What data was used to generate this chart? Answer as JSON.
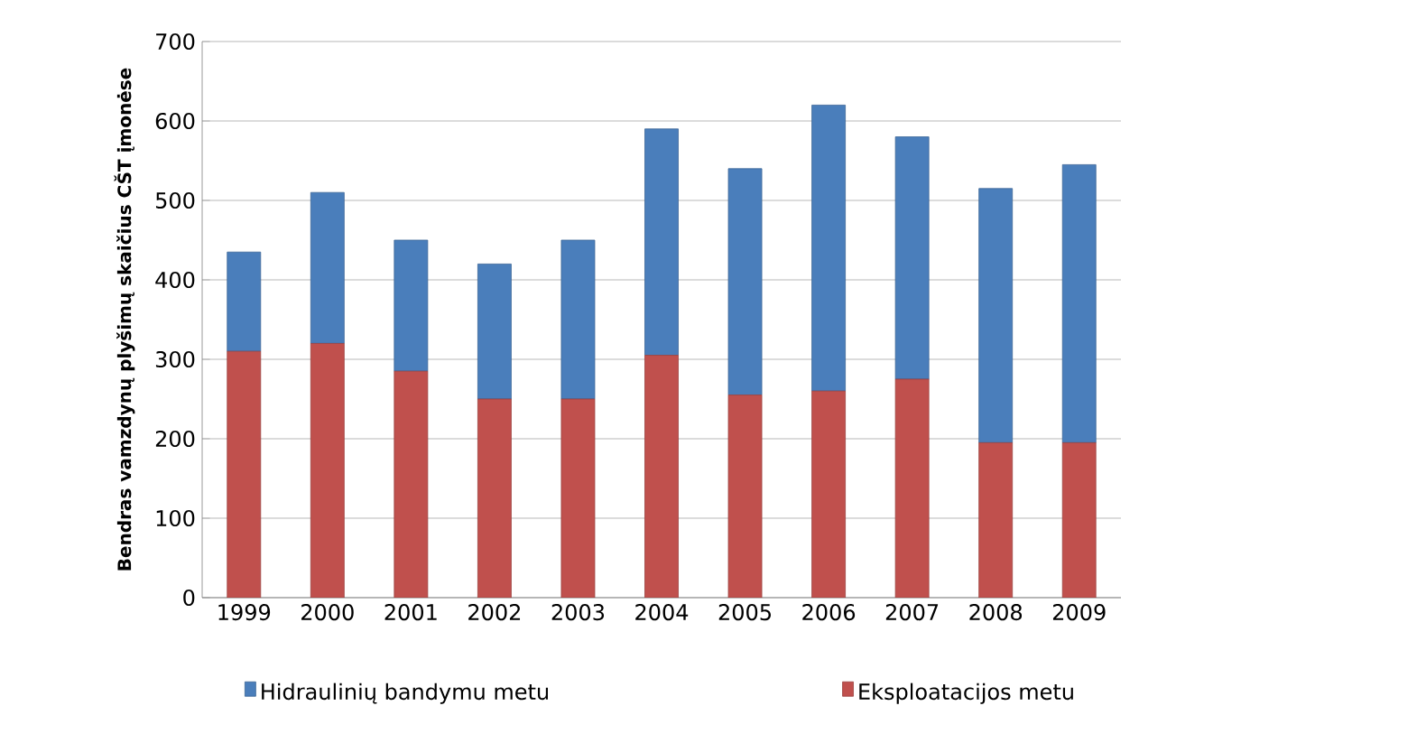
{
  "chart_data": {
    "type": "bar",
    "stacked": true,
    "ylabel": "Bendras vamzdynų plyšimų skaičius  CŠT įmonėse",
    "categories": [
      "1999",
      "2000",
      "2001",
      "2002",
      "2003",
      "2004",
      "2005",
      "2006",
      "2007",
      "2008",
      "2009"
    ],
    "series": [
      {
        "name": "Eksploatacijos metu",
        "color": "#c0504d",
        "values": [
          310,
          320,
          285,
          250,
          250,
          305,
          255,
          260,
          275,
          195,
          195
        ]
      },
      {
        "name": "Hidraulinių bandymu metu",
        "color": "#4a7ebb",
        "values": [
          125,
          190,
          165,
          170,
          200,
          285,
          285,
          360,
          305,
          320,
          350
        ]
      }
    ],
    "ylim": [
      0,
      700
    ],
    "yticks": [
      0,
      100,
      200,
      300,
      400,
      500,
      600,
      700
    ],
    "grid": "y",
    "legend": "bottom"
  }
}
